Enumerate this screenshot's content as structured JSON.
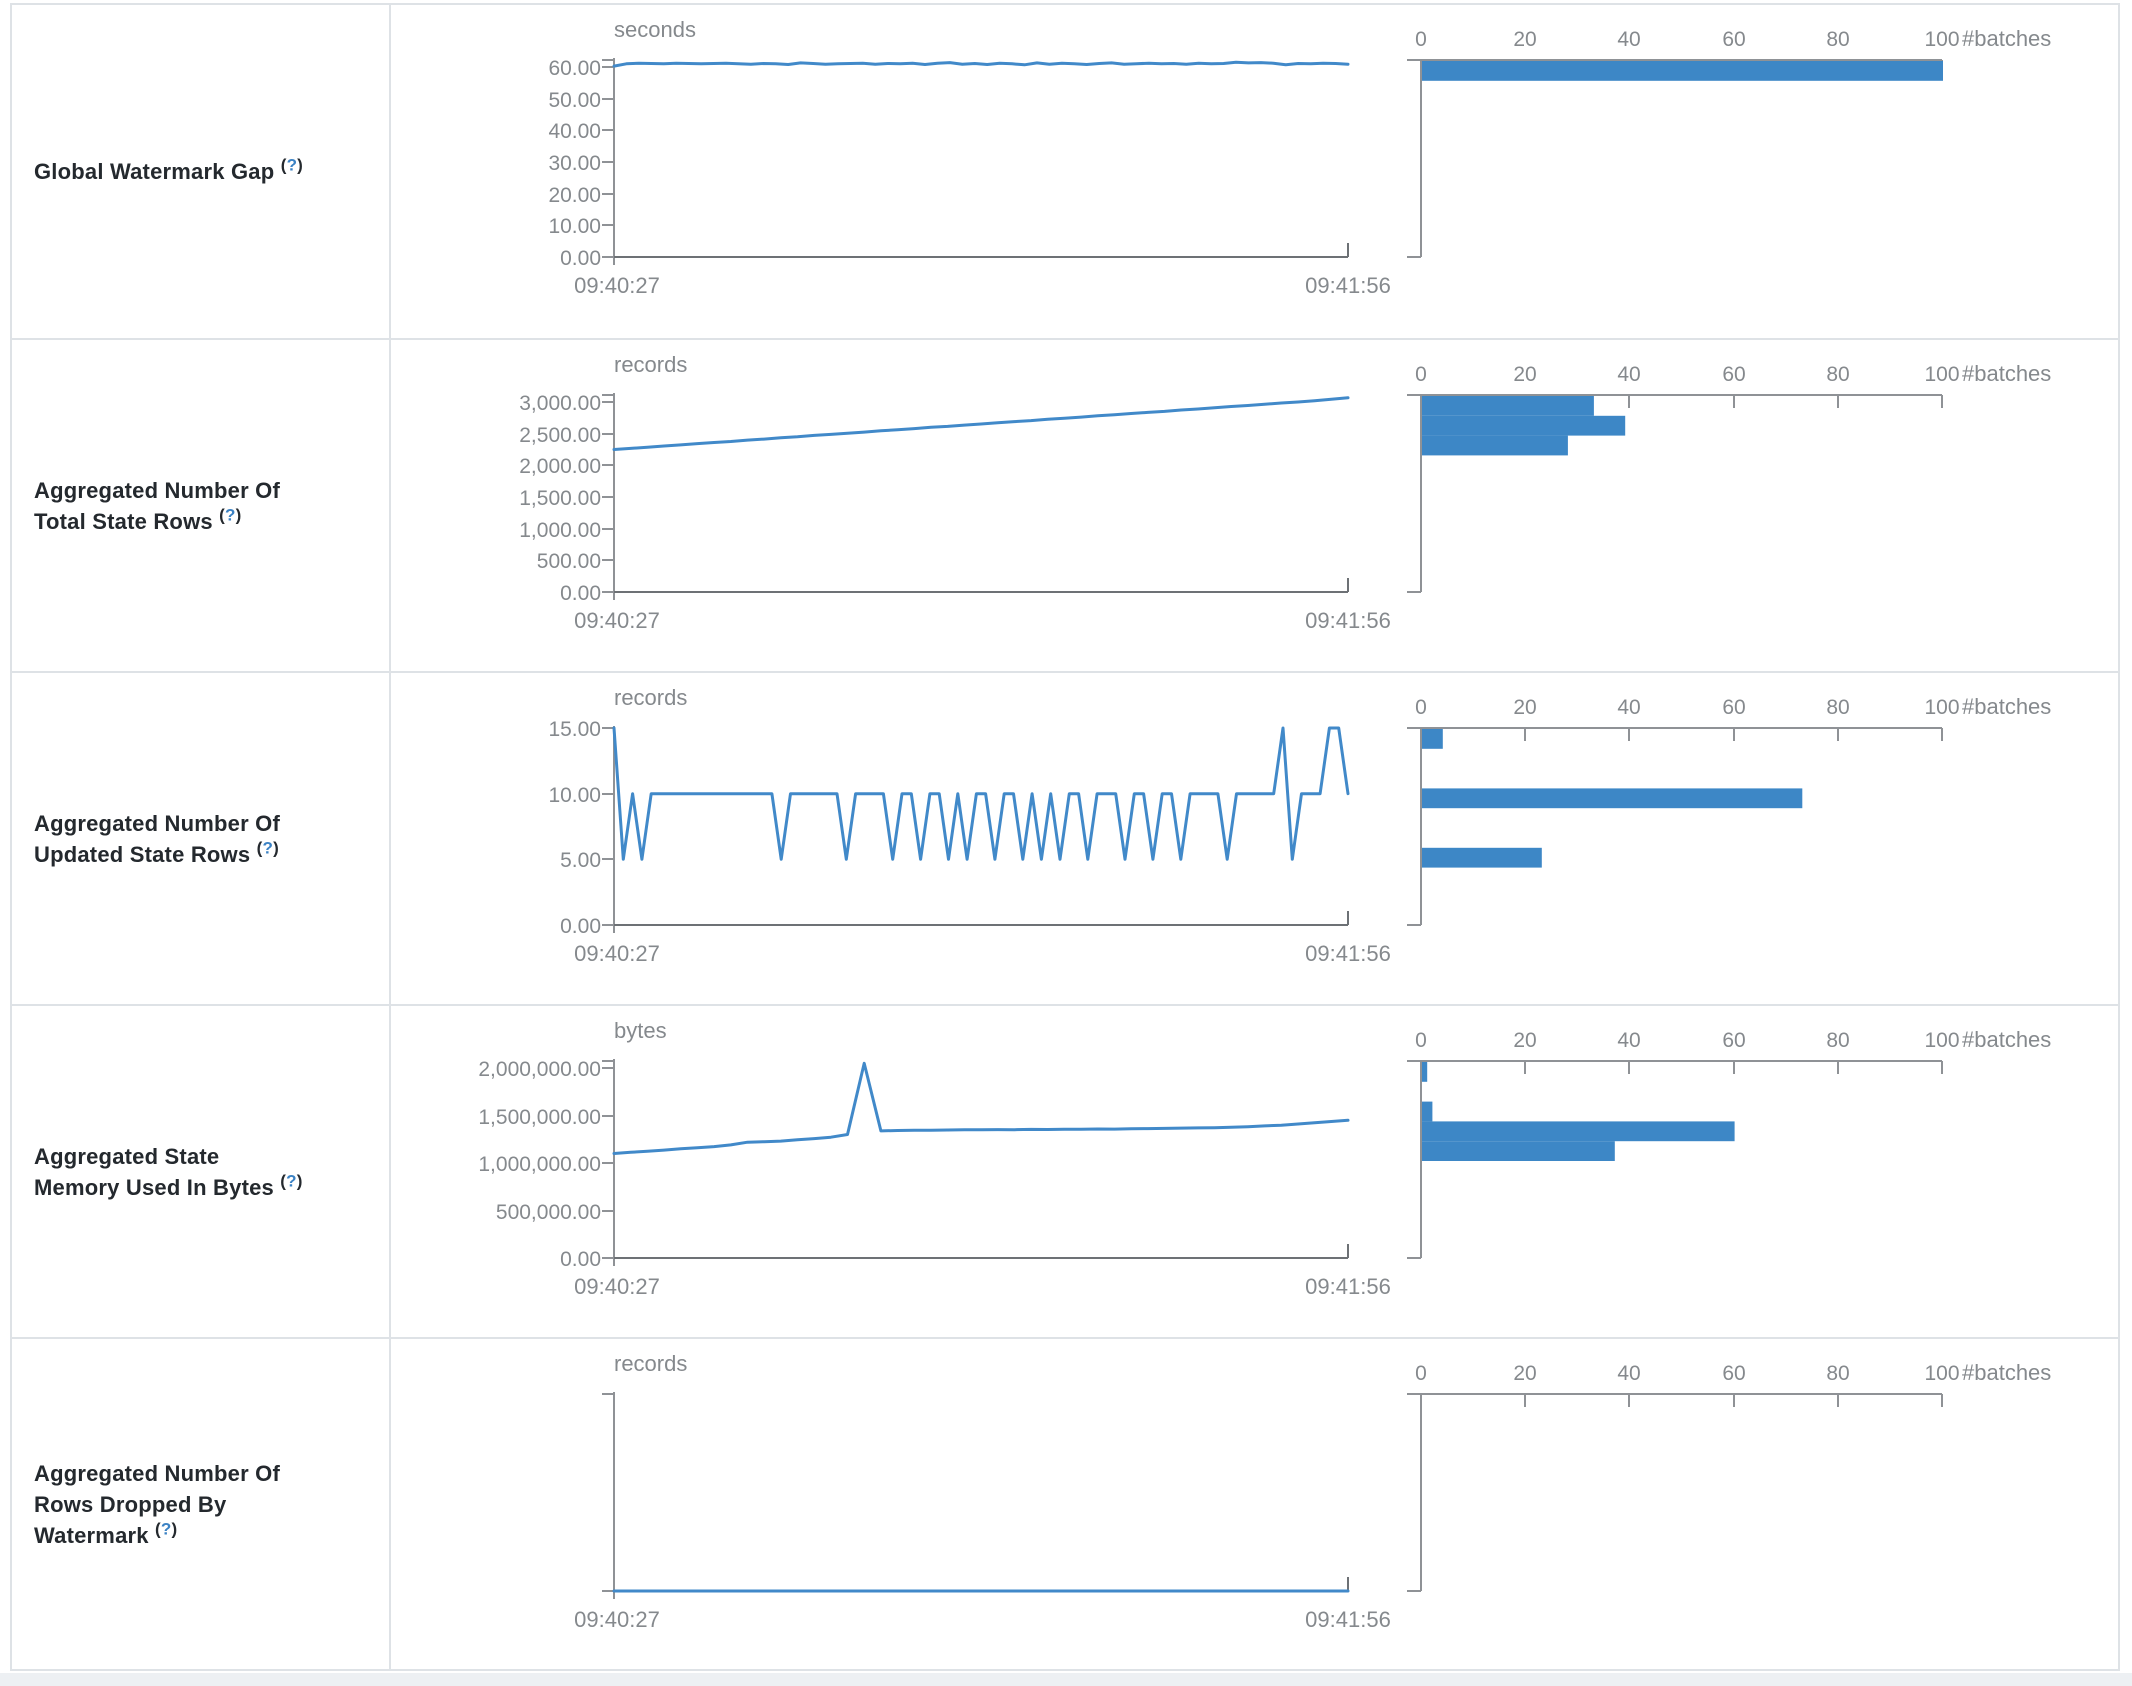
{
  "theme": {
    "accent_bar": "#3d87c6",
    "accent_line": "#4189c9",
    "axis_gray": "#8f9296",
    "axis_dark": "#6d7175",
    "tick_text_gray": "#85898d",
    "label_text": "#24292e",
    "help_blue": "#3b82c4",
    "border": "#dee2e6"
  },
  "rows": [
    {
      "label": "Global Watermark Gap",
      "help": {
        "open": "(",
        "mark": "?",
        "close": ")"
      },
      "timeline": {
        "type": "line",
        "unit": "seconds",
        "y_max": 60,
        "max_at_top": false,
        "y_ticks": [
          {
            "label": "60.00",
            "v": 60
          },
          {
            "label": "50.00",
            "v": 50
          },
          {
            "label": "40.00",
            "v": 40
          },
          {
            "label": "30.00",
            "v": 30
          },
          {
            "label": "20.00",
            "v": 20
          },
          {
            "label": "10.00",
            "v": 10
          },
          {
            "label": "0.00",
            "v": 0
          }
        ],
        "x_start_label": "09:40:27",
        "x_end_label": "09:41:56",
        "values": [
          60.3,
          61.0,
          61.2,
          61.1,
          61.0,
          61.2,
          61.1,
          61.0,
          61.1,
          61.2,
          61.0,
          60.9,
          61.1,
          61.0,
          60.8,
          61.3,
          61.1,
          60.9,
          61.0,
          61.1,
          61.2,
          60.9,
          61.1,
          61.0,
          61.2,
          60.8,
          61.2,
          61.4,
          60.9,
          61.1,
          60.8,
          61.2,
          61.0,
          60.7,
          61.3,
          60.9,
          61.2,
          61.0,
          60.8,
          61.1,
          61.3,
          60.9,
          61.0,
          61.2,
          61.0,
          61.1,
          60.9,
          61.2,
          61.0,
          61.1,
          61.5,
          61.3,
          61.4,
          61.2,
          60.7,
          61.1,
          61.0,
          61.2,
          61.1,
          60.9
        ]
      },
      "histogram": {
        "type": "bar",
        "unit": "#batches",
        "x_max": 100,
        "x_tick_labels": [
          "0",
          "20",
          "40",
          "60",
          "80",
          "100"
        ],
        "bars": [
          {
            "bin": 0,
            "count": 100
          }
        ]
      }
    },
    {
      "label": "Aggregated Number Of Total State Rows",
      "help": {
        "open": "(",
        "mark": "?",
        "close": ")"
      },
      "timeline": {
        "type": "line",
        "unit": "records",
        "y_max": 3000,
        "max_at_top": false,
        "y_ticks": [
          {
            "label": "3,000.00",
            "v": 3000
          },
          {
            "label": "2,500.00",
            "v": 2500
          },
          {
            "label": "2,000.00",
            "v": 2000
          },
          {
            "label": "1,500.00",
            "v": 1500
          },
          {
            "label": "1,000.00",
            "v": 1000
          },
          {
            "label": "500.00",
            "v": 500
          },
          {
            "label": "0.00",
            "v": 0
          }
        ],
        "x_start_label": "09:40:27",
        "x_end_label": "09:41:56",
        "values": [
          2250,
          2268,
          2287,
          2306,
          2322,
          2343,
          2360,
          2377,
          2398,
          2414,
          2434,
          2450,
          2472,
          2489,
          2505,
          2524,
          2546,
          2562,
          2580,
          2600,
          2615,
          2636,
          2652,
          2672,
          2690,
          2707,
          2728,
          2744,
          2762,
          2782,
          2798,
          2819,
          2836,
          2852,
          2874,
          2890,
          2908,
          2929,
          2944,
          2964,
          2984,
          3000,
          3020,
          3042,
          3066
        ]
      },
      "histogram": {
        "type": "bar",
        "unit": "#batches",
        "x_max": 100,
        "x_tick_labels": [
          "0",
          "20",
          "40",
          "60",
          "80",
          "100"
        ],
        "bars": [
          {
            "bin": 0,
            "count": 33
          },
          {
            "bin": 1,
            "count": 39
          },
          {
            "bin": 2,
            "count": 28
          }
        ]
      }
    },
    {
      "label": "Aggregated Number Of Updated State Rows",
      "help": {
        "open": "(",
        "mark": "?",
        "close": ")"
      },
      "timeline": {
        "type": "line",
        "unit": "records",
        "y_max": 15,
        "max_at_top": true,
        "y_ticks": [
          {
            "label": "15.00",
            "v": 15
          },
          {
            "label": "10.00",
            "v": 10
          },
          {
            "label": "5.00",
            "v": 5
          },
          {
            "label": "0.00",
            "v": 0
          }
        ],
        "x_start_label": "09:40:27",
        "x_end_label": "09:41:56",
        "values": [
          15,
          5,
          10,
          5,
          10,
          10,
          10,
          10,
          10,
          10,
          10,
          10,
          10,
          10,
          10,
          10,
          10,
          10,
          5,
          10,
          10,
          10,
          10,
          10,
          10,
          5,
          10,
          10,
          10,
          10,
          5,
          10,
          10,
          5,
          10,
          10,
          5,
          10,
          5,
          10,
          10,
          5,
          10,
          10,
          5,
          10,
          5,
          10,
          5,
          10,
          10,
          5,
          10,
          10,
          10,
          5,
          10,
          10,
          5,
          10,
          10,
          5,
          10,
          10,
          10,
          10,
          5,
          10,
          10,
          10,
          10,
          10,
          15,
          5,
          10,
          10,
          10,
          15,
          15,
          10
        ]
      },
      "histogram": {
        "type": "bar",
        "unit": "#batches",
        "x_max": 100,
        "x_tick_labels": [
          "0",
          "20",
          "40",
          "60",
          "80",
          "100"
        ],
        "bars": [
          {
            "bin": 0,
            "count": 4
          },
          {
            "bin": 3,
            "count": 73
          },
          {
            "bin": 6,
            "count": 23
          }
        ]
      }
    },
    {
      "label": "Aggregated State Memory Used In Bytes",
      "help": {
        "open": "(",
        "mark": "?",
        "close": ")"
      },
      "timeline": {
        "type": "line",
        "unit": "bytes",
        "y_max": 2000000,
        "max_at_top": false,
        "y_ticks": [
          {
            "label": "2,000,000.00",
            "v": 2000000
          },
          {
            "label": "1,500,000.00",
            "v": 1500000
          },
          {
            "label": "1,000,000.00",
            "v": 1000000
          },
          {
            "label": "500,000.00",
            "v": 500000
          },
          {
            "label": "0.00",
            "v": 0
          }
        ],
        "x_start_label": "09:40:27",
        "x_end_label": "09:41:56",
        "values": [
          1100000,
          1113000,
          1123000,
          1136000,
          1149000,
          1160000,
          1173000,
          1190000,
          1219000,
          1224000,
          1230000,
          1245000,
          1257000,
          1272000,
          1300000,
          2050000,
          1338000,
          1342000,
          1345000,
          1344000,
          1347000,
          1350000,
          1349000,
          1352000,
          1351000,
          1354000,
          1353000,
          1356000,
          1355000,
          1358000,
          1357000,
          1360000,
          1362000,
          1364000,
          1367000,
          1369000,
          1372000,
          1376000,
          1382000,
          1390000,
          1398000,
          1410000,
          1424000,
          1437000,
          1450000
        ]
      },
      "histogram": {
        "type": "bar",
        "unit": "#batches",
        "x_max": 100,
        "x_tick_labels": [
          "0",
          "20",
          "40",
          "60",
          "80",
          "100"
        ],
        "bars": [
          {
            "bin": 0,
            "count": 1
          },
          {
            "bin": 2,
            "count": 2
          },
          {
            "bin": 3,
            "count": 60
          },
          {
            "bin": 4,
            "count": 37
          }
        ]
      }
    },
    {
      "label": "Aggregated Number Of Rows Dropped By Watermark",
      "help": {
        "open": "(",
        "mark": "?",
        "close": ")"
      },
      "timeline": {
        "type": "line",
        "unit": "records",
        "y_max": 1,
        "max_at_top": false,
        "y_ticks": [],
        "x_start_label": "09:40:27",
        "x_end_label": "09:41:56",
        "values": [
          0,
          0
        ]
      },
      "histogram": {
        "type": "bar",
        "unit": "#batches",
        "x_max": 100,
        "x_tick_labels": [
          "0",
          "20",
          "40",
          "60",
          "80",
          "100"
        ],
        "bars": []
      }
    }
  ]
}
